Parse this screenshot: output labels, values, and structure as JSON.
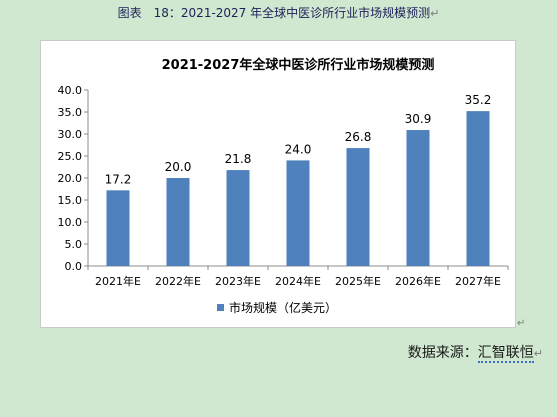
{
  "document": {
    "caption": "图表　18：2021-2027 年全球中医诊所行业市场规模预测",
    "paragraph_mark": "↵",
    "source_label": "数据来源：",
    "source_name": "汇智联恒"
  },
  "colors": {
    "bar": "#4f81bd",
    "axis": "#8c8c8c",
    "text": "#000000",
    "page_background": "#cfe8cf"
  },
  "chart_data": {
    "type": "bar",
    "title": "2021-2027年全球中医诊所行业市场规模预测",
    "categories": [
      "2021年E",
      "2022年E",
      "2023年E",
      "2024年E",
      "2025年E",
      "2026年E",
      "2027年E"
    ],
    "series": [
      {
        "name": "市场规模（亿美元）",
        "values": [
          17.2,
          20.0,
          21.8,
          24.0,
          26.8,
          30.9,
          35.2
        ]
      }
    ],
    "value_labels": [
      "17.2",
      "20.0",
      "21.8",
      "24.0",
      "26.8",
      "30.9",
      "35.2"
    ],
    "ylim": [
      0,
      40
    ],
    "yticks": [
      "0.0",
      "5.0",
      "10.0",
      "15.0",
      "20.0",
      "25.0",
      "30.0",
      "35.0",
      "40.0"
    ],
    "xlabel": "",
    "ylabel": "",
    "grid": false,
    "legend_position": "bottom"
  }
}
